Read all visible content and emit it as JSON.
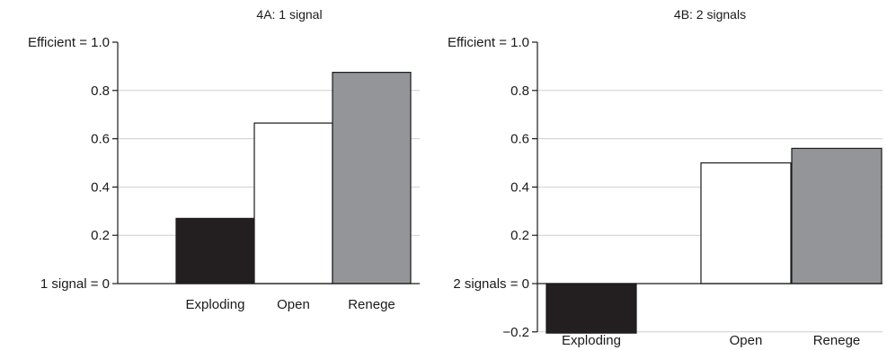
{
  "chart_data": [
    {
      "type": "bar",
      "title": "4A: 1 signal",
      "categories": [
        "Exploding",
        "Open",
        "Renege"
      ],
      "values": [
        0.27,
        0.665,
        0.875
      ],
      "colors": [
        "#231f20",
        "#ffffff",
        "#939598"
      ],
      "ylim": [
        0,
        1.0
      ],
      "ytick_values": [
        0,
        0.2,
        0.4,
        0.6,
        0.8,
        1.0
      ],
      "ytick_labels": [
        "1 signal = 0",
        "0.2",
        "0.4",
        "0.6",
        "0.8",
        "Efficient = 1.0"
      ],
      "grid": true
    },
    {
      "type": "bar",
      "title": "4B: 2 signals",
      "categories": [
        "Exploding",
        "Open",
        "Renege"
      ],
      "values": [
        -0.205,
        0.5,
        0.56
      ],
      "colors": [
        "#231f20",
        "#ffffff",
        "#939598"
      ],
      "ylim": [
        -0.2,
        1.0
      ],
      "ytick_values": [
        -0.2,
        0,
        0.2,
        0.4,
        0.6,
        0.8,
        1.0
      ],
      "ytick_labels": [
        "−0.2",
        "2 signals = 0",
        "0.2",
        "0.4",
        "0.6",
        "0.8",
        "Efficient = 1.0"
      ],
      "grid": true
    }
  ]
}
